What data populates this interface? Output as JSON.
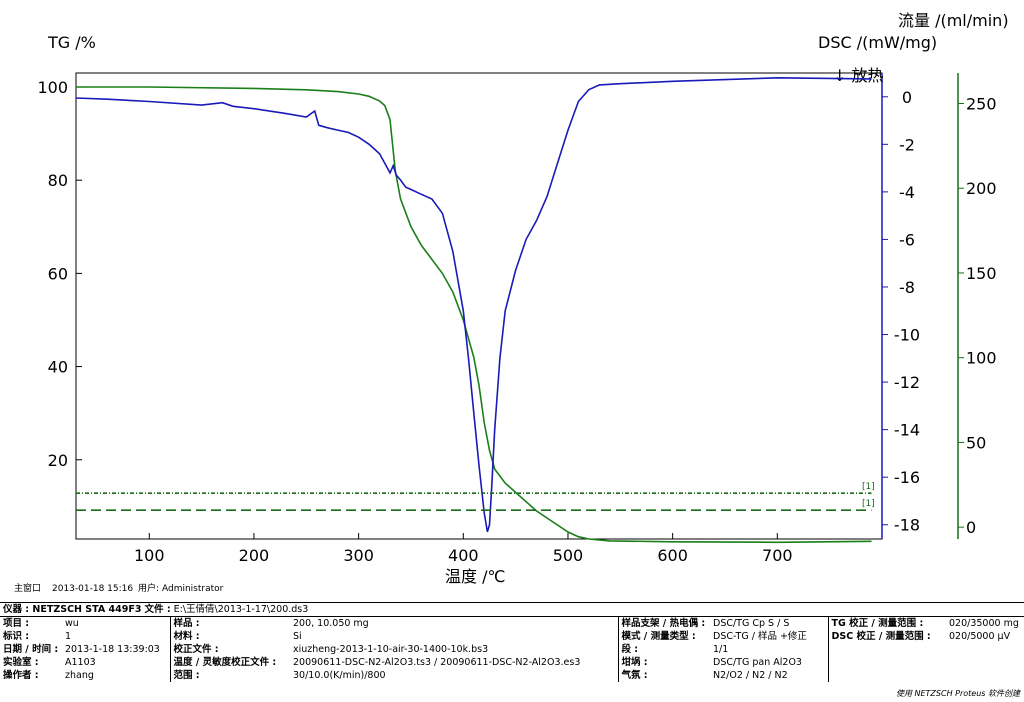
{
  "chart_data": {
    "type": "line",
    "xlabel": "温度 /℃",
    "x_ticks": [
      100,
      200,
      300,
      400,
      500,
      600,
      700
    ],
    "xlim": [
      30,
      800
    ],
    "y_left_title": "TG /%",
    "y_left_ticks": [
      20,
      40,
      60,
      80,
      100
    ],
    "y_left_lim": [
      3,
      103
    ],
    "y_dsc_title": "DSC /(mW/mg)",
    "y_dsc_ticks": [
      0,
      -2,
      -4,
      -6,
      -8,
      -10,
      -12,
      -14,
      -16,
      -18
    ],
    "y_dsc_lim": [
      -18.6,
      1.0
    ],
    "y_flow_title": "流量 /(ml/min)",
    "y_flow_ticks": [
      0,
      50,
      100,
      150,
      200,
      250
    ],
    "y_flow_lim": [
      -7,
      268
    ],
    "exo_label": "↓ 放热",
    "series": [
      {
        "axis": "tg",
        "color": "#1a7f1a",
        "x": [
          30,
          100,
          200,
          250,
          280,
          300,
          310,
          320,
          325,
          330,
          335,
          340,
          350,
          360,
          370,
          380,
          390,
          400,
          405,
          410,
          415,
          420,
          425,
          430,
          440,
          450,
          460,
          470,
          480,
          490,
          500,
          510,
          520,
          540,
          600,
          700,
          790
        ],
        "y": [
          100,
          100,
          99.7,
          99.4,
          99,
          98.5,
          98,
          97,
          96,
          93,
          82,
          76,
          70,
          66,
          63,
          60,
          56,
          50,
          46,
          42,
          36,
          28,
          22,
          18,
          15,
          13,
          11,
          9,
          7.5,
          6,
          4.5,
          3.5,
          3,
          2.6,
          2.4,
          2.3,
          2.5
        ]
      },
      {
        "axis": "dsc",
        "color": "#1a1ab8",
        "x": [
          30,
          60,
          100,
          150,
          170,
          180,
          200,
          230,
          250,
          258,
          262,
          270,
          280,
          290,
          300,
          310,
          320,
          325,
          330,
          333,
          336,
          340,
          345,
          350,
          360,
          370,
          380,
          390,
          400,
          405,
          410,
          415,
          420,
          423,
          425,
          427,
          430,
          435,
          440,
          450,
          460,
          470,
          480,
          490,
          500,
          510,
          520,
          530,
          550,
          600,
          700,
          790
        ],
        "y": [
          -0.05,
          -0.1,
          -0.2,
          -0.35,
          -0.25,
          -0.4,
          -0.5,
          -0.7,
          -0.85,
          -0.6,
          -1.2,
          -1.3,
          -1.4,
          -1.5,
          -1.7,
          -2.0,
          -2.4,
          -2.8,
          -3.2,
          -2.9,
          -3.3,
          -3.5,
          -3.8,
          -3.9,
          -4.1,
          -4.3,
          -4.9,
          -6.5,
          -9.0,
          -11.0,
          -13.3,
          -15.5,
          -17.5,
          -18.3,
          -18.0,
          -16.5,
          -14.0,
          -11.0,
          -9.0,
          -7.3,
          -6.0,
          -5.2,
          -4.2,
          -2.8,
          -1.4,
          -0.2,
          0.3,
          0.5,
          0.55,
          0.65,
          0.8,
          0.75
        ]
      },
      {
        "axis": "flow",
        "color": "#1a6b1a",
        "dash": "4,2,1,2",
        "x": [
          30,
          790
        ],
        "y": [
          20,
          20
        ],
        "tag": "[1]"
      },
      {
        "axis": "flow",
        "color": "#1a6b1a",
        "dash": "10,5",
        "x": [
          30,
          790
        ],
        "y": [
          10,
          10
        ],
        "tag": "[1]"
      }
    ]
  },
  "meta": {
    "main_window_label": "主窗口",
    "datetime": "2013-01-18 15:16",
    "user_label": "用户:",
    "user": "Administrator"
  },
  "info": {
    "instrument_label": "仪器 : NETZSCH STA 449F3",
    "file_label": "文件 :",
    "file_path": "E:\\王倩倩\\2013-1-17\\200.ds3",
    "project_label": "项目 :",
    "project": "wu",
    "id_label": "标识 :",
    "id": "1",
    "date_label": "日期 / 时间 :",
    "date": "2013-1-18 13:39:03",
    "lab_label": "实验室 :",
    "lab": "A1103",
    "operator_label": "操作者 :",
    "operator": "zhang",
    "sample_label": "样品 :",
    "sample": "200, 10.050 mg",
    "material_label": "材料 :",
    "material": "Si",
    "correction_label": "校正文件 :",
    "correction": "xiuzheng-2013-1-10-air-30-1400-10k.bs3",
    "temp_sens_label": "温度 / 灵敏度校正文件 :",
    "temp_sens": "20090611-DSC-N2-Al2O3.ts3 / 20090611-DSC-N2-Al2O3.es3",
    "range_label": "范围 :",
    "range": "30/10.0(K/min)/800",
    "holder_label": "样品支架 / 热电偶 :",
    "holder": "DSC/TG Cp S / S",
    "mode_label": "模式 / 测量类型 :",
    "mode": "DSC-TG / 样品 +修正",
    "segment_label": "段 :",
    "segment": "1/1",
    "crucible_label": "坩埚 :",
    "crucible": "DSC/TG pan Al2O3",
    "atmosphere_label": "气氛 :",
    "atmosphere": "N2/O2 / N2 / N2",
    "tg_range_label": "TG 校正 / 测量范围 :",
    "tg_range": "020/35000 mg",
    "dsc_range_label": "DSC 校正 / 测量范围 :",
    "dsc_range": "020/5000 µV"
  },
  "footer": "使用 NETZSCH Proteus 软件创建"
}
